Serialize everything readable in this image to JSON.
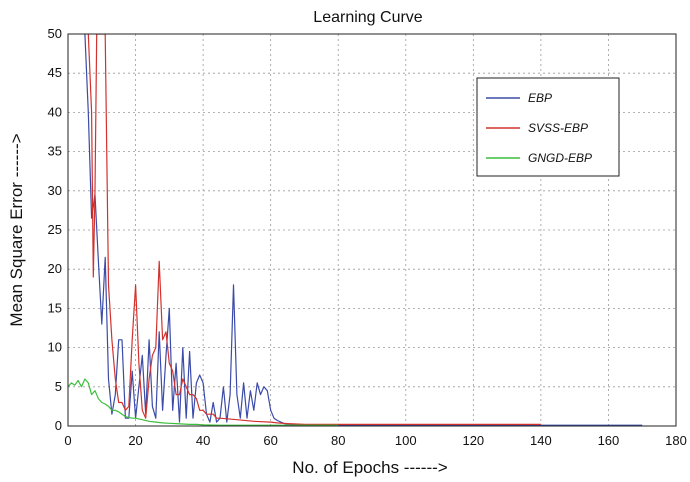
{
  "chart_data": {
    "type": "line",
    "title": "Learning Curve",
    "xlabel": "No. of Epochs ------>",
    "ylabel": "Mean Square Error ------>",
    "xlim": [
      0,
      180
    ],
    "ylim": [
      0,
      50
    ],
    "xticks": [
      "0",
      "20",
      "40",
      "60",
      "80",
      "100",
      "120",
      "140",
      "160",
      "180"
    ],
    "yticks": [
      "0",
      "5",
      "10",
      "15",
      "20",
      "25",
      "30",
      "35",
      "40",
      "45",
      "50"
    ],
    "grid": true,
    "legend_position": "top-right",
    "series": [
      {
        "name": "EBP",
        "color": "#3b4ba8",
        "x": [
          5,
          6,
          7,
          8,
          9,
          10,
          11,
          12,
          13,
          14,
          15,
          16,
          17,
          18,
          19,
          20,
          21,
          22,
          23,
          24,
          25,
          26,
          27,
          28,
          29,
          30,
          31,
          32,
          33,
          34,
          35,
          36,
          37,
          38,
          39,
          40,
          41,
          42,
          43,
          44,
          45,
          46,
          47,
          48,
          49,
          50,
          51,
          52,
          53,
          54,
          55,
          56,
          57,
          58,
          59,
          60,
          61,
          62,
          64,
          66,
          70,
          80,
          100,
          120,
          140,
          160,
          170
        ],
        "y": [
          50,
          40,
          26.5,
          29.5,
          21,
          13,
          21.5,
          6,
          1.5,
          4,
          11,
          11,
          1,
          1,
          7,
          1,
          5,
          9,
          1.5,
          11,
          2.5,
          1,
          12,
          2,
          9,
          15,
          2,
          8,
          0.5,
          10,
          1,
          9.5,
          1,
          5.5,
          6.5,
          5.5,
          1.5,
          0.5,
          3,
          0.5,
          1,
          5,
          0.5,
          4,
          18,
          4,
          1,
          5.5,
          1,
          4.5,
          2,
          5.5,
          4,
          5,
          4.5,
          2,
          1,
          0.7,
          0.3,
          0.2,
          0.15,
          0.1,
          0.1,
          0.1,
          0.1,
          0.1,
          0.1
        ]
      },
      {
        "name": "SVSS-EBP",
        "color": "#d2322d",
        "x": [
          6,
          7,
          7.5,
          8,
          8.5,
          9,
          10,
          11,
          12,
          13,
          14,
          15,
          16,
          17,
          18,
          19,
          20,
          21,
          22,
          23,
          24,
          25,
          26,
          27,
          28,
          29,
          30,
          31,
          32,
          33,
          34,
          35,
          36,
          37,
          38,
          39,
          40,
          41,
          42,
          43,
          44,
          45,
          50,
          55,
          60,
          62,
          65,
          70,
          80,
          100,
          120,
          140
        ],
        "y": [
          50,
          40,
          19,
          30,
          50,
          50,
          50,
          50,
          18,
          11,
          6,
          3,
          3,
          2,
          2.5,
          11,
          18,
          8,
          2,
          1,
          6,
          9,
          10,
          21,
          11,
          12,
          8,
          7,
          4,
          4,
          6,
          5,
          4,
          4,
          3.5,
          2,
          2,
          1.5,
          1.5,
          1.5,
          1,
          1,
          0.8,
          0.6,
          0.5,
          0.4,
          0.3,
          0.2,
          0.2,
          0.2,
          0.2,
          0.2
        ]
      },
      {
        "name": "GNGD-EBP",
        "color": "#3cbf3c",
        "x": [
          0,
          1,
          2,
          3,
          4,
          5,
          6,
          7,
          8,
          9,
          10,
          11,
          12,
          13,
          14,
          15,
          16,
          17,
          18,
          19,
          20,
          22,
          24,
          26,
          28,
          30,
          32,
          34,
          36,
          38,
          40,
          45,
          50,
          55,
          60,
          65,
          70,
          80
        ],
        "y": [
          5,
          5.5,
          5.2,
          5.8,
          5,
          6,
          5.5,
          4,
          4.5,
          3.5,
          3,
          2.8,
          2.5,
          2,
          2,
          1.8,
          1.5,
          1.2,
          1.1,
          1,
          1,
          0.8,
          0.6,
          0.5,
          0.4,
          0.35,
          0.3,
          0.25,
          0.2,
          0.2,
          0.15,
          0.1,
          0.1,
          0.1,
          0.1,
          0.1,
          0.1,
          0.1
        ]
      }
    ]
  }
}
